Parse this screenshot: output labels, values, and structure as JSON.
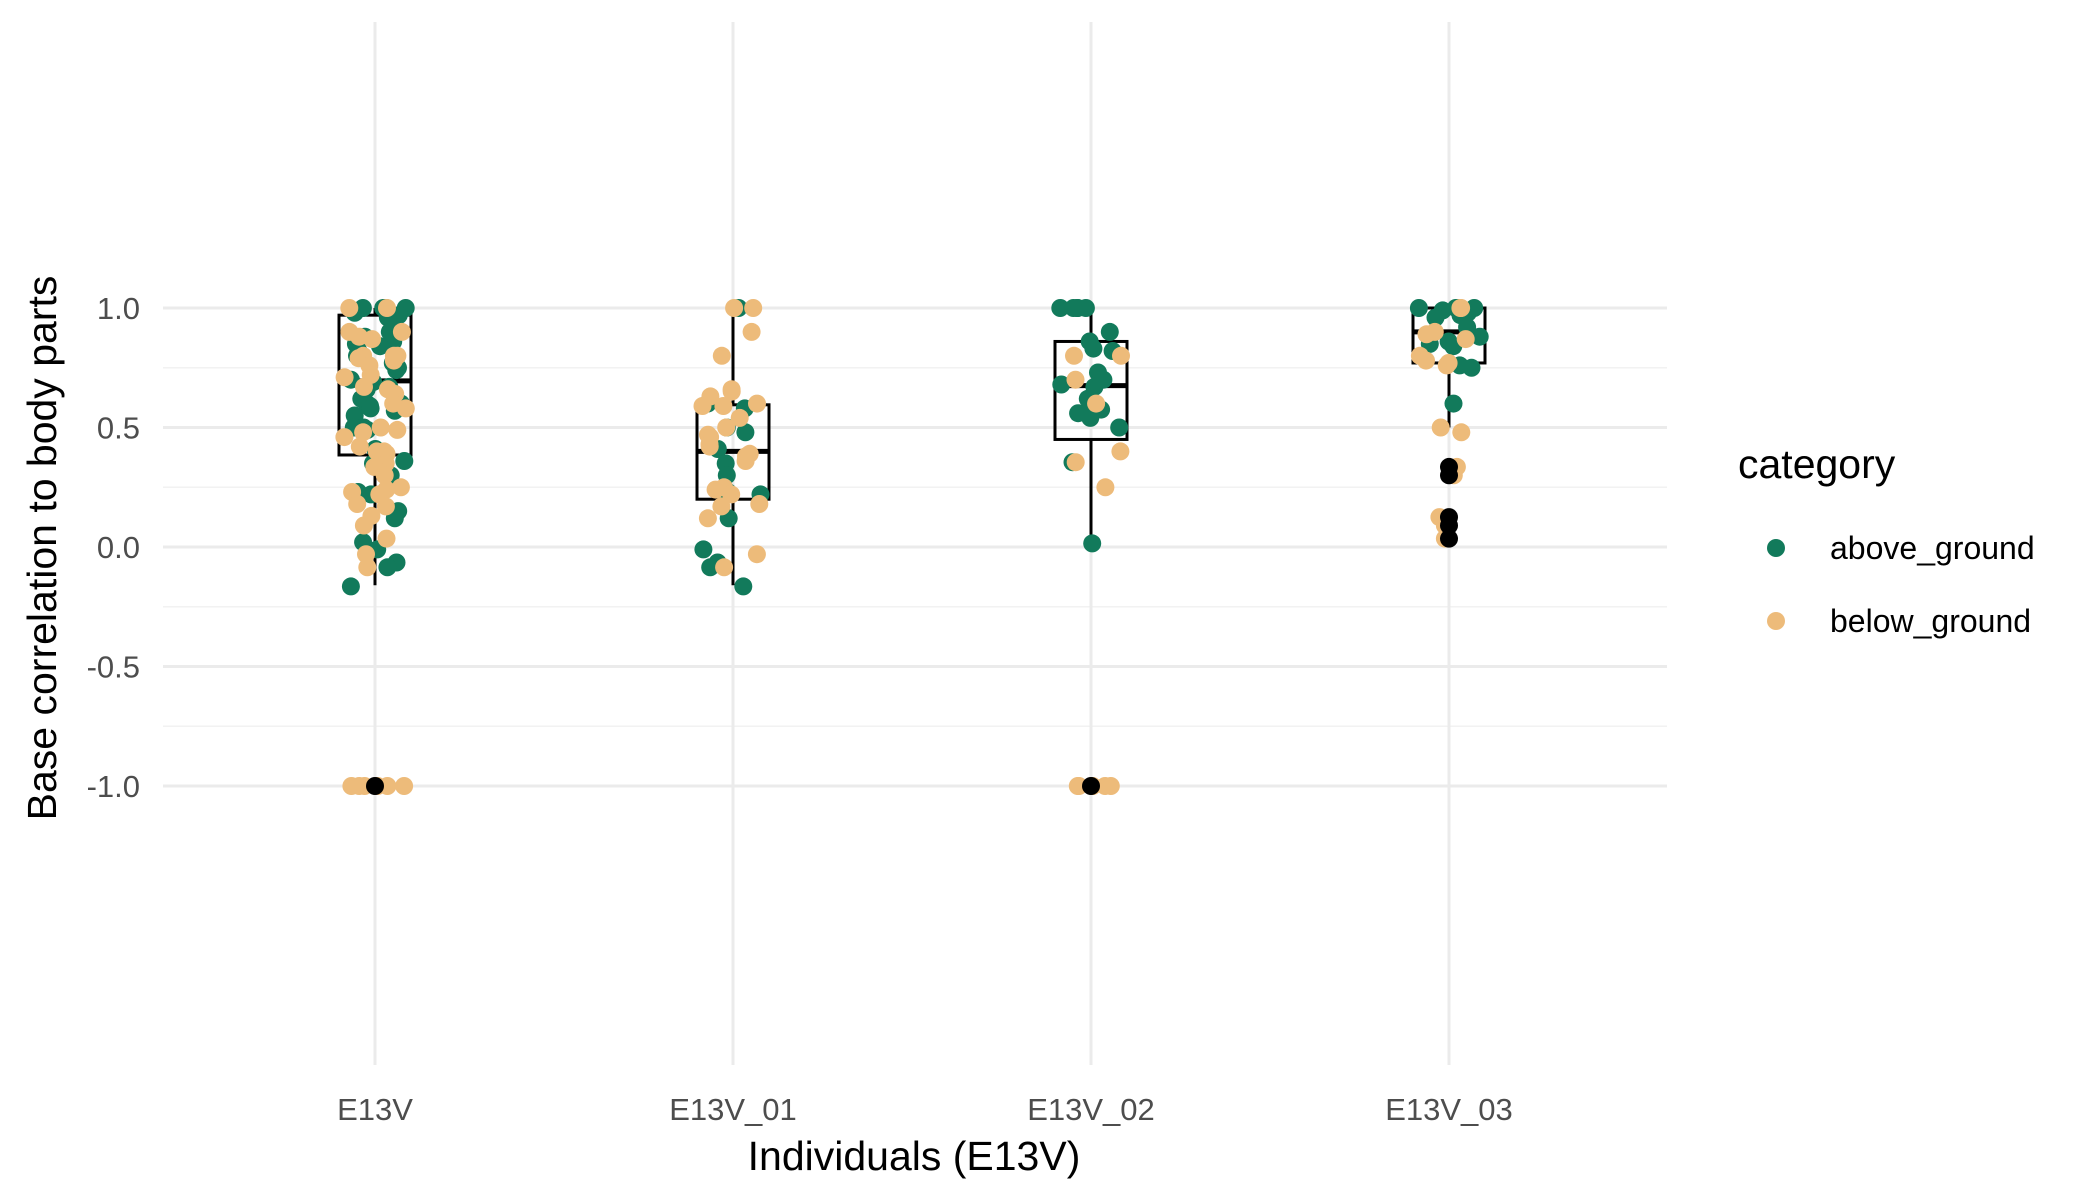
{
  "chart_data": {
    "type": "scatter",
    "subtype": "boxplot-with-jitter",
    "title": "",
    "xlabel": "Individuals (E13V)",
    "ylabel": "Base correlation to body parts",
    "ylim": [
      -1.1,
      1.03
    ],
    "yticks": [
      -1.0,
      -0.5,
      0.0,
      0.5,
      1.0
    ],
    "ytick_labels": [
      "-1.0",
      "-0.5",
      "0.0",
      "0.5",
      "1.0"
    ],
    "categories": [
      "E13V",
      "E13V_01",
      "E13V_02",
      "E13V_03"
    ],
    "grid": true,
    "legend": {
      "title": "category",
      "position": "right",
      "entries": [
        {
          "label": "above_ground",
          "color": "#127A5B"
        },
        {
          "label": "below_ground",
          "color": "#EDBB7A"
        }
      ]
    },
    "outlier_color": "#000000",
    "boxes": [
      {
        "category": "E13V",
        "lower_whisker": -0.16,
        "q1": 0.385,
        "median": 0.695,
        "q3": 0.97,
        "upper_whisker": 1.0,
        "outliers": [
          -1.0
        ]
      },
      {
        "category": "E13V_01",
        "lower_whisker": -0.16,
        "q1": 0.2,
        "median": 0.4,
        "q3": 0.595,
        "upper_whisker": 1.0,
        "outliers": []
      },
      {
        "category": "E13V_02",
        "lower_whisker": 0.02,
        "q1": 0.45,
        "median": 0.675,
        "q3": 0.86,
        "upper_whisker": 1.0,
        "outliers": [
          -1.0
        ]
      },
      {
        "category": "E13V_03",
        "lower_whisker": 0.5,
        "q1": 0.77,
        "median": 0.9,
        "q3": 1.0,
        "upper_whisker": 1.0,
        "outliers": [
          0.335,
          0.3,
          0.125,
          0.09,
          0.035
        ]
      }
    ],
    "series": [
      {
        "name": "above_ground",
        "color": "#127A5B",
        "points": [
          {
            "category": "E13V",
            "values": [
              1.0,
              1.0,
              1.0,
              1.0,
              1.0,
              1.0,
              0.98,
              0.97,
              0.96,
              0.92,
              0.9,
              0.88,
              0.86,
              0.85,
              0.84,
              0.82,
              0.8,
              0.77,
              0.75,
              0.74,
              0.7,
              0.69,
              0.67,
              0.66,
              0.62,
              0.6,
              0.6,
              0.6,
              0.59,
              0.58,
              0.57,
              0.55,
              0.5,
              0.5,
              0.49,
              0.41,
              0.36,
              0.35,
              0.3,
              0.23,
              0.22,
              0.15,
              0.12,
              0.02,
              -0.01,
              -0.065,
              -0.085,
              -0.165
            ]
          },
          {
            "category": "E13V_01",
            "values": [
              1.0,
              0.6,
              0.58,
              0.5,
              0.48,
              0.41,
              0.35,
              0.3,
              0.23,
              0.22,
              0.12,
              -0.01,
              -0.065,
              -0.085,
              -0.165
            ]
          },
          {
            "category": "E13V_02",
            "values": [
              1.0,
              1.0,
              1.0,
              1.0,
              1.0,
              0.9,
              0.86,
              0.83,
              0.82,
              0.73,
              0.7,
              0.68,
              0.67,
              0.62,
              0.6,
              0.575,
              0.56,
              0.54,
              0.5,
              0.355,
              0.015
            ]
          },
          {
            "category": "E13V_03",
            "values": [
              1.0,
              1.0,
              1.0,
              1.0,
              1.0,
              0.99,
              0.98,
              0.97,
              0.96,
              0.92,
              0.88,
              0.86,
              0.85,
              0.84,
              0.76,
              0.75,
              0.6
            ]
          }
        ]
      },
      {
        "name": "below_ground",
        "color": "#EDBB7A",
        "points": [
          {
            "category": "E13V",
            "values": [
              1.0,
              1.0,
              0.9,
              0.9,
              0.88,
              0.87,
              0.8,
              0.8,
              0.8,
              0.79,
              0.78,
              0.76,
              0.72,
              0.71,
              0.67,
              0.66,
              0.64,
              0.6,
              0.58,
              0.5,
              0.49,
              0.48,
              0.46,
              0.42,
              0.4,
              0.4,
              0.39,
              0.35,
              0.335,
              0.3,
              0.25,
              0.24,
              0.23,
              0.22,
              0.18,
              0.17,
              0.13,
              0.09,
              0.035,
              -0.03,
              -0.085,
              -1.0,
              -1.0,
              -1.0,
              -1.0,
              -1.0,
              -1.0
            ]
          },
          {
            "category": "E13V_01",
            "values": [
              1.0,
              1.0,
              0.9,
              0.8,
              0.66,
              0.65,
              0.63,
              0.6,
              0.59,
              0.59,
              0.54,
              0.5,
              0.47,
              0.46,
              0.43,
              0.42,
              0.39,
              0.38,
              0.36,
              0.25,
              0.24,
              0.22,
              0.18,
              0.17,
              0.12,
              -0.03,
              -0.085
            ]
          },
          {
            "category": "E13V_02",
            "values": [
              0.8,
              0.8,
              0.7,
              0.6,
              0.4,
              0.355,
              0.25,
              -1.0,
              -1.0,
              -1.0,
              -1.0,
              -1.0,
              -1.0
            ]
          },
          {
            "category": "E13V_03",
            "values": [
              1.0,
              1.0,
              0.9,
              0.89,
              0.87,
              0.8,
              0.78,
              0.77,
              0.76,
              0.5,
              0.48,
              0.335,
              0.3,
              0.125,
              0.09,
              0.035
            ]
          }
        ]
      }
    ]
  }
}
